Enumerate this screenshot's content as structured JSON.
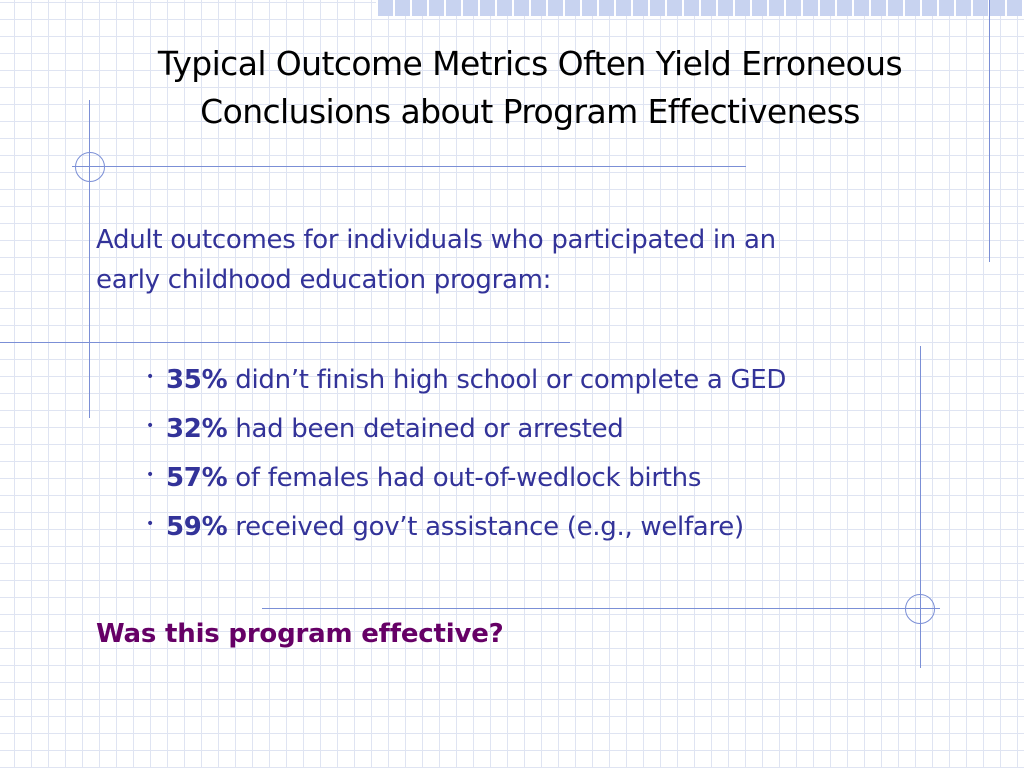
{
  "slide": {
    "title_line1": "Typical Outcome Metrics Often Yield Erroneous",
    "title_line2": "Conclusions about Program Effectiveness",
    "intro_line1": "Adult outcomes for individuals who participated in an",
    "intro_line2": "early childhood education program:",
    "bullets": [
      {
        "pct": "35%",
        "text": " didn’t finish high school or complete a GED"
      },
      {
        "pct": "32%",
        "text": " had been detained or arrested"
      },
      {
        "pct": "57%",
        "text": " of females had out-of-wedlock births"
      },
      {
        "pct": "59%",
        "text": " received gov’t assistance (e.g., welfare)"
      }
    ],
    "bullet_glyph": "•",
    "question": "Was this program effective?"
  },
  "colors": {
    "title": "#000000",
    "body": "#333399",
    "question": "#660066",
    "grid": "#dfe4f2",
    "accent_lines": "#7b8fd6"
  }
}
